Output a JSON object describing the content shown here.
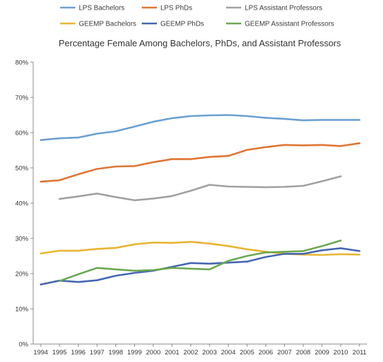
{
  "chart_data": {
    "type": "line",
    "title": "Percentage Female Among Bachelors, PhDs, and Assistant Professors",
    "xlabel": "",
    "ylabel": "",
    "ylim": [
      0,
      80
    ],
    "y_ticks": [
      "0%",
      "10%",
      "20%",
      "30%",
      "40%",
      "50%",
      "60%",
      "70%",
      "80%"
    ],
    "grid": false,
    "legend_position": "top",
    "categories": [
      "1994",
      "1995",
      "1996",
      "1997",
      "1998",
      "1999",
      "2000",
      "2001",
      "2002",
      "2003",
      "2004",
      "2005",
      "2006",
      "2007",
      "2008",
      "2009",
      "2010",
      "2011"
    ],
    "series": [
      {
        "name": "LPS Bachelors",
        "color": "#6a9fd2",
        "values": [
          57.9,
          58.4,
          58.6,
          59.7,
          60.4,
          61.7,
          63.1,
          64.1,
          64.7,
          64.9,
          65.0,
          64.7,
          64.2,
          63.9,
          63.5,
          63.6,
          63.6,
          63.6
        ]
      },
      {
        "name": "LPS PhDs",
        "color": "#e07432",
        "values": [
          46.1,
          46.5,
          48.2,
          49.7,
          50.4,
          50.5,
          51.6,
          52.5,
          52.5,
          53.1,
          53.4,
          55.1,
          55.9,
          56.5,
          56.4,
          56.5,
          56.2,
          57.0
        ]
      },
      {
        "name": "LPS Assistant Professors",
        "color": "#a0a0a0",
        "values": [
          null,
          41.2,
          41.9,
          42.7,
          41.7,
          40.8,
          41.3,
          42.0,
          43.5,
          45.2,
          44.7,
          44.6,
          44.5,
          44.6,
          44.9,
          46.2,
          47.6,
          null
        ]
      },
      {
        "name": "GEEMP Bachelors",
        "color": "#e8b430",
        "values": [
          25.7,
          26.5,
          26.5,
          27.0,
          27.3,
          28.3,
          28.8,
          28.7,
          29.0,
          28.5,
          27.8,
          26.9,
          26.2,
          25.6,
          25.4,
          25.3,
          25.5,
          25.4
        ]
      },
      {
        "name": "GEEMP PhDs",
        "color": "#4566b0",
        "values": [
          16.9,
          18.0,
          17.6,
          18.1,
          19.4,
          20.2,
          20.8,
          21.9,
          23.0,
          22.8,
          23.1,
          23.4,
          24.7,
          25.6,
          25.6,
          26.6,
          27.2,
          26.4
        ]
      },
      {
        "name": "GEEMP Assistant Professors",
        "color": "#6aa84f",
        "values": [
          null,
          17.9,
          19.8,
          21.6,
          21.2,
          20.8,
          21.0,
          21.6,
          21.4,
          21.2,
          23.6,
          25.0,
          26.0,
          26.2,
          26.4,
          27.8,
          29.4,
          null
        ]
      }
    ]
  }
}
